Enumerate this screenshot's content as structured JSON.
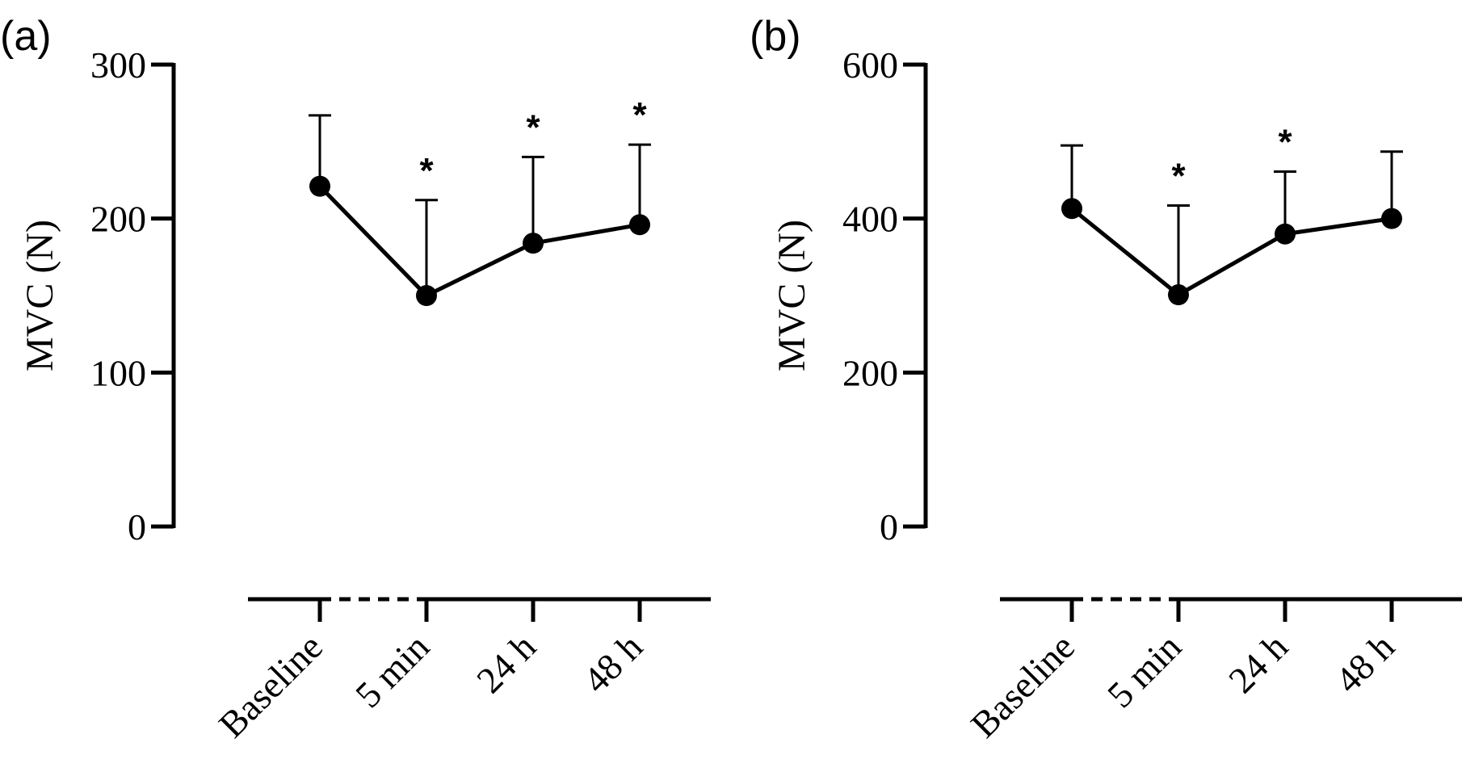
{
  "chart_data": [
    {
      "panel_label": "(a)",
      "type": "line",
      "ylabel": "MVC (N)",
      "ylim": [
        0,
        300
      ],
      "yticks": [
        "0",
        "100",
        "200",
        "300"
      ],
      "categories": [
        "Baseline",
        "5 min",
        "24 h",
        "48 h"
      ],
      "series": [
        {
          "values": [
            221,
            150,
            184,
            196
          ],
          "error_upper": [
            267,
            212,
            240,
            248
          ]
        }
      ],
      "significance": [
        "",
        "*",
        "*",
        "*"
      ]
    },
    {
      "panel_label": "(b)",
      "type": "line",
      "ylabel": "MVC (N)",
      "ylim": [
        0,
        600
      ],
      "yticks": [
        "0",
        "200",
        "400",
        "600"
      ],
      "categories": [
        "Baseline",
        "5 min",
        "24 h",
        "48 h"
      ],
      "series": [
        {
          "values": [
            413,
            301,
            380,
            400
          ],
          "error_upper": [
            495,
            417,
            461,
            487
          ]
        }
      ],
      "significance": [
        "",
        "*",
        "*",
        ""
      ]
    }
  ]
}
